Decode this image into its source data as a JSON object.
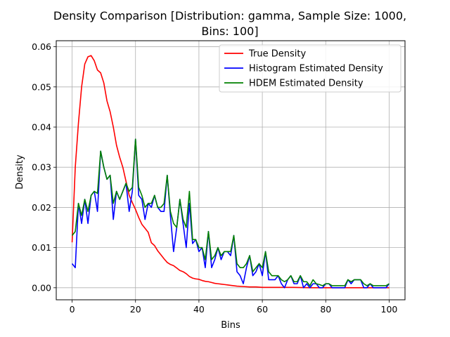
{
  "chart_data": {
    "type": "line",
    "title": "Density Comparison [Distribution: gamma, Sample Size: 1000, Bins: 100]",
    "title_lines": [
      "Density Comparison [Distribution: gamma, Sample Size: 1000,",
      "Bins: 100]"
    ],
    "xlabel": "Bins",
    "ylabel": "Density",
    "xlim": [
      -5,
      105
    ],
    "ylim": [
      -0.003,
      0.0615
    ],
    "xticks": [
      0,
      20,
      40,
      60,
      80,
      100
    ],
    "xtick_labels": [
      "0",
      "20",
      "40",
      "60",
      "80",
      "100"
    ],
    "yticks": [
      0.0,
      0.01,
      0.02,
      0.03,
      0.04,
      0.05,
      0.06
    ],
    "ytick_labels": [
      "0.00",
      "0.01",
      "0.02",
      "0.03",
      "0.04",
      "0.05",
      "0.06"
    ],
    "grid": true,
    "legend_position": "top-right",
    "series": [
      {
        "name": "True Density",
        "color": "#ff0000",
        "x": [
          0,
          1,
          2,
          3,
          4,
          5,
          6,
          7,
          8,
          9,
          10,
          11,
          12,
          13,
          14,
          15,
          16,
          17,
          18,
          19,
          20,
          21,
          22,
          23,
          24,
          25,
          26,
          27,
          28,
          29,
          30,
          31,
          32,
          33,
          34,
          35,
          36,
          37,
          38,
          39,
          40,
          41,
          42,
          43,
          44,
          45,
          46,
          47,
          48,
          49,
          50,
          52,
          54,
          56,
          58,
          60,
          62,
          64,
          66,
          68,
          70,
          75,
          80,
          85,
          90,
          95,
          100
        ],
        "y": [
          0.0113,
          0.03,
          0.041,
          0.05,
          0.0557,
          0.0575,
          0.0578,
          0.0565,
          0.0542,
          0.0535,
          0.051,
          0.0465,
          0.0438,
          0.04,
          0.0355,
          0.0325,
          0.03,
          0.0265,
          0.023,
          0.0212,
          0.0195,
          0.0175,
          0.0158,
          0.0148,
          0.0138,
          0.0112,
          0.0105,
          0.0092,
          0.0082,
          0.0072,
          0.0063,
          0.0058,
          0.0055,
          0.0049,
          0.0043,
          0.004,
          0.0035,
          0.0028,
          0.0024,
          0.0022,
          0.0021,
          0.0018,
          0.0016,
          0.0015,
          0.0013,
          0.0011,
          0.001,
          0.0009,
          0.0008,
          0.0007,
          0.0006,
          0.0004,
          0.0003,
          0.0002,
          0.0002,
          0.0001,
          0.0001,
          0.0001,
          0.0001,
          0.0001,
          0.0001,
          0.0,
          0.0,
          0.0,
          0.0,
          0.0,
          0.0
        ]
      },
      {
        "name": "Histogram Estimated Density",
        "color": "#0000ff",
        "x": [
          0,
          1,
          2,
          3,
          4,
          5,
          6,
          7,
          8,
          9,
          10,
          11,
          12,
          13,
          14,
          15,
          16,
          17,
          18,
          19,
          20,
          21,
          22,
          23,
          24,
          25,
          26,
          27,
          28,
          29,
          30,
          31,
          32,
          33,
          34,
          35,
          36,
          37,
          38,
          39,
          40,
          41,
          42,
          43,
          44,
          45,
          46,
          47,
          48,
          49,
          50,
          51,
          52,
          53,
          54,
          55,
          56,
          57,
          58,
          59,
          60,
          61,
          62,
          63,
          64,
          65,
          66,
          67,
          68,
          69,
          70,
          71,
          72,
          73,
          74,
          75,
          76,
          77,
          78,
          79,
          80,
          81,
          82,
          83,
          84,
          85,
          86,
          87,
          88,
          89,
          90,
          91,
          92,
          93,
          94,
          95,
          96,
          97,
          98,
          99,
          100
        ],
        "y": [
          0.006,
          0.005,
          0.021,
          0.016,
          0.022,
          0.016,
          0.023,
          0.024,
          0.019,
          0.034,
          0.03,
          0.027,
          0.028,
          0.017,
          0.024,
          0.022,
          0.024,
          0.026,
          0.019,
          0.024,
          0.037,
          0.023,
          0.022,
          0.017,
          0.021,
          0.02,
          0.023,
          0.02,
          0.019,
          0.019,
          0.028,
          0.018,
          0.009,
          0.015,
          0.022,
          0.016,
          0.01,
          0.021,
          0.011,
          0.012,
          0.009,
          0.01,
          0.005,
          0.014,
          0.005,
          0.007,
          0.01,
          0.007,
          0.009,
          0.009,
          0.008,
          0.013,
          0.004,
          0.003,
          0.001,
          0.005,
          0.008,
          0.003,
          0.004,
          0.006,
          0.003,
          0.009,
          0.002,
          0.002,
          0.002,
          0.003,
          0.001,
          0.0,
          0.002,
          0.003,
          0.001,
          0.001,
          0.003,
          0.0,
          0.001,
          0.0,
          0.001,
          0.001,
          0.0,
          0.0,
          0.001,
          0.001,
          0.0,
          0.0,
          0.0,
          0.0,
          0.0,
          0.002,
          0.001,
          0.002,
          0.002,
          0.002,
          0.0,
          0.0,
          0.001,
          0.0,
          0.0,
          0.0,
          0.0,
          0.0,
          0.001
        ]
      },
      {
        "name": "HDEM Estimated Density",
        "color": "#008000",
        "x": [
          0,
          1,
          2,
          3,
          4,
          5,
          6,
          7,
          8,
          9,
          10,
          11,
          12,
          13,
          14,
          15,
          16,
          17,
          18,
          19,
          20,
          21,
          22,
          23,
          24,
          25,
          26,
          27,
          28,
          29,
          30,
          31,
          32,
          33,
          34,
          35,
          36,
          37,
          38,
          39,
          40,
          41,
          42,
          43,
          44,
          45,
          46,
          47,
          48,
          49,
          50,
          51,
          52,
          53,
          54,
          55,
          56,
          57,
          58,
          59,
          60,
          61,
          62,
          63,
          64,
          65,
          66,
          67,
          68,
          69,
          70,
          71,
          72,
          73,
          74,
          75,
          76,
          77,
          78,
          79,
          80,
          81,
          82,
          83,
          84,
          85,
          86,
          87,
          88,
          89,
          90,
          91,
          92,
          93,
          94,
          95,
          96,
          97,
          98,
          99,
          100
        ],
        "y": [
          0.013,
          0.014,
          0.021,
          0.018,
          0.022,
          0.019,
          0.023,
          0.024,
          0.0235,
          0.034,
          0.03,
          0.027,
          0.028,
          0.021,
          0.024,
          0.022,
          0.024,
          0.026,
          0.024,
          0.025,
          0.037,
          0.025,
          0.023,
          0.02,
          0.021,
          0.021,
          0.023,
          0.02,
          0.02,
          0.021,
          0.028,
          0.019,
          0.016,
          0.015,
          0.022,
          0.017,
          0.015,
          0.024,
          0.012,
          0.012,
          0.01,
          0.01,
          0.007,
          0.014,
          0.007,
          0.008,
          0.01,
          0.008,
          0.009,
          0.009,
          0.009,
          0.013,
          0.006,
          0.005,
          0.005,
          0.006,
          0.008,
          0.004,
          0.005,
          0.006,
          0.005,
          0.009,
          0.004,
          0.003,
          0.003,
          0.003,
          0.002,
          0.0015,
          0.002,
          0.003,
          0.0015,
          0.0015,
          0.003,
          0.0015,
          0.0015,
          0.0005,
          0.002,
          0.001,
          0.0008,
          0.0005,
          0.001,
          0.001,
          0.0005,
          0.0005,
          0.0005,
          0.0005,
          0.0005,
          0.002,
          0.0015,
          0.002,
          0.002,
          0.002,
          0.001,
          0.0005,
          0.001,
          0.0005,
          0.0005,
          0.0005,
          0.0005,
          0.0005,
          0.001
        ]
      }
    ]
  }
}
